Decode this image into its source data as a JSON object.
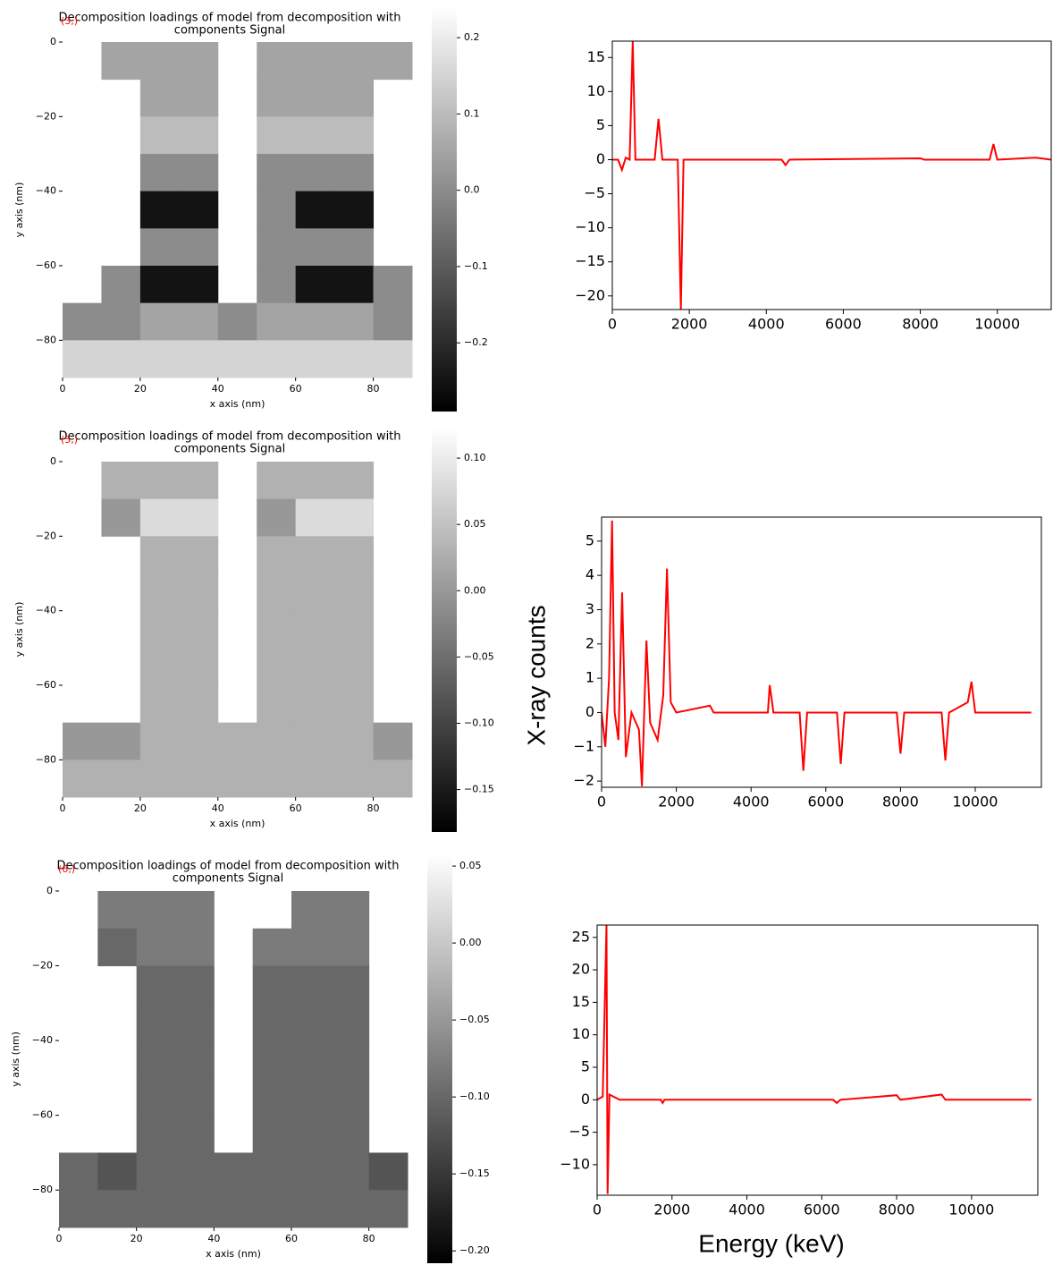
{
  "figure": {
    "ylabel": "X-ray counts",
    "xlabel": "Energy (keV)"
  },
  "chart_data": [
    {
      "type": "heatmap",
      "title": [
        "Decomposition loadings of  model from decomposition with",
        "components Signal"
      ],
      "annotation": "(3,)",
      "xlabel": "x axis (nm)",
      "ylabel": "y axis (nm)",
      "cmap": "gray",
      "xlim": [
        0,
        90
      ],
      "ylim": [
        -90,
        0
      ],
      "xticks": [
        0,
        20,
        40,
        60,
        80
      ],
      "yticks": [
        0,
        {
          "value": -20,
          "label": "−20"
        },
        {
          "value": -40,
          "label": "−40"
        },
        {
          "value": -60,
          "label": "−60"
        },
        {
          "value": -80,
          "label": "−80"
        }
      ],
      "clim": [
        -0.29,
        0.24
      ],
      "cticks": [
        0.2,
        0.1,
        {
          "value": 0,
          "label": "0.0"
        },
        {
          "value": -0.1,
          "label": "−0.1"
        },
        {
          "value": -0.2,
          "label": "−0.2"
        }
      ],
      "x": [
        5,
        15,
        25,
        35,
        45,
        55,
        65,
        75,
        85
      ],
      "y": [
        -5,
        -15,
        -25,
        -35,
        -45,
        -55,
        -65,
        -75,
        -85
      ],
      "values": [
        [
          null,
          0.05,
          0.05,
          0.05,
          null,
          0.05,
          0.05,
          0.05,
          0.05
        ],
        [
          null,
          null,
          0.05,
          0.05,
          null,
          0.05,
          0.05,
          0.05,
          null
        ],
        [
          null,
          null,
          0.1,
          0.1,
          null,
          0.1,
          0.1,
          0.1,
          null
        ],
        [
          null,
          null,
          0.0,
          0.0,
          null,
          0.0,
          0.0,
          0.0,
          null
        ],
        [
          null,
          null,
          -0.25,
          -0.25,
          null,
          0.0,
          -0.25,
          -0.25,
          null
        ],
        [
          null,
          null,
          0.0,
          0.0,
          null,
          0.0,
          0.0,
          0.0,
          null
        ],
        [
          null,
          0.0,
          -0.25,
          -0.25,
          null,
          0.0,
          -0.25,
          -0.25,
          0.0
        ],
        [
          0.0,
          0.0,
          0.05,
          0.05,
          0.0,
          0.05,
          0.05,
          0.05,
          0.0
        ],
        [
          0.15,
          0.15,
          0.15,
          0.15,
          0.15,
          0.15,
          0.15,
          0.15,
          0.15
        ]
      ]
    },
    {
      "type": "line",
      "color": "#ff0000",
      "xlim": [
        0,
        11400
      ],
      "ylim": [
        -22,
        17.4
      ],
      "xticks": [
        0,
        2000,
        4000,
        6000,
        8000,
        10000
      ],
      "yticks": [
        {
          "value": -20,
          "label": "−20"
        },
        {
          "value": -15,
          "label": "−15"
        },
        {
          "value": -10,
          "label": "−10"
        },
        {
          "value": -5,
          "label": "−5"
        },
        0,
        5,
        10,
        15
      ],
      "x": [
        0,
        150,
        250,
        350,
        450,
        530,
        600,
        1100,
        1200,
        1300,
        1700,
        1780,
        1850,
        4400,
        4500,
        4600,
        8000,
        8100,
        9800,
        9900,
        10000,
        11000,
        11400
      ],
      "values": [
        0,
        0,
        -1.5,
        0.3,
        0,
        17.4,
        0,
        0,
        6,
        0,
        0,
        -22,
        0,
        0,
        -0.8,
        0,
        0.2,
        0,
        0,
        2.3,
        0,
        0.3,
        0
      ]
    },
    {
      "type": "heatmap",
      "title": [
        "Decomposition loadings of  model from decomposition with",
        "components Signal"
      ],
      "annotation": "(5,)",
      "xlabel": "x axis (nm)",
      "ylabel": "y axis (nm)",
      "cmap": "gray",
      "xlim": [
        0,
        90
      ],
      "ylim": [
        -90,
        0
      ],
      "xticks": [
        0,
        20,
        40,
        60,
        80
      ],
      "yticks": [
        0,
        {
          "value": -20,
          "label": "−20"
        },
        {
          "value": -40,
          "label": "−40"
        },
        {
          "value": -60,
          "label": "−60"
        },
        {
          "value": -80,
          "label": "−80"
        }
      ],
      "clim": [
        -0.182,
        0.123
      ],
      "cticks": [
        {
          "value": 0.1,
          "label": "0.10"
        },
        0.05,
        {
          "value": 0,
          "label": "0.00"
        },
        {
          "value": -0.05,
          "label": "−0.05"
        },
        {
          "value": -0.1,
          "label": "−0.10"
        },
        {
          "value": -0.15,
          "label": "−0.15"
        }
      ],
      "x": [
        5,
        15,
        25,
        35,
        45,
        55,
        65,
        75,
        85
      ],
      "y": [
        -5,
        -15,
        -25,
        -35,
        -45,
        -55,
        -65,
        -75,
        -85
      ],
      "values": [
        [
          null,
          0.03,
          0.03,
          0.03,
          null,
          0.03,
          0.03,
          0.03,
          null
        ],
        [
          null,
          0.0,
          0.08,
          0.08,
          null,
          0.0,
          0.08,
          0.08,
          null
        ],
        [
          null,
          null,
          0.03,
          0.03,
          null,
          0.03,
          0.03,
          0.03,
          null
        ],
        [
          null,
          null,
          0.03,
          0.03,
          null,
          0.03,
          0.03,
          0.03,
          null
        ],
        [
          null,
          null,
          0.03,
          0.03,
          null,
          0.03,
          0.03,
          0.03,
          null
        ],
        [
          null,
          null,
          0.03,
          0.03,
          null,
          0.03,
          0.03,
          0.03,
          null
        ],
        [
          null,
          null,
          0.03,
          0.03,
          null,
          0.03,
          0.03,
          0.03,
          null
        ],
        [
          0.0,
          0.0,
          0.03,
          0.03,
          0.03,
          0.03,
          0.03,
          0.03,
          0.0
        ],
        [
          0.03,
          0.03,
          0.03,
          0.03,
          0.03,
          0.03,
          0.03,
          0.03,
          0.03
        ]
      ]
    },
    {
      "type": "line",
      "color": "#ff0000",
      "xlim": [
        0,
        11770
      ],
      "ylim": [
        -2.18,
        5.7
      ],
      "xticks": [
        0,
        2000,
        4000,
        6000,
        8000,
        10000
      ],
      "yticks": [
        {
          "value": -2,
          "label": "−2"
        },
        {
          "value": -1,
          "label": "−1"
        },
        0,
        1,
        2,
        3,
        4,
        5
      ],
      "x": [
        0,
        100,
        200,
        280,
        350,
        450,
        550,
        650,
        800,
        1000,
        1080,
        1200,
        1300,
        1500,
        1650,
        1750,
        1850,
        2000,
        2900,
        3000,
        4450,
        4500,
        4600,
        5300,
        5400,
        5500,
        6300,
        6400,
        6500,
        7900,
        8000,
        8100,
        9100,
        9200,
        9300,
        9800,
        9900,
        10000,
        11500
      ],
      "values": [
        0,
        -1,
        1,
        5.6,
        0,
        -0.8,
        3.5,
        -1.3,
        0,
        -0.5,
        -2.15,
        2.1,
        -0.3,
        -0.8,
        0.5,
        4.2,
        0.3,
        0,
        0.2,
        0,
        0,
        0.8,
        0,
        0,
        -1.7,
        0,
        0,
        -1.5,
        0,
        0,
        -1.2,
        0,
        0,
        -1.4,
        0,
        0.3,
        0.9,
        0,
        0
      ]
    },
    {
      "type": "heatmap",
      "title": [
        "Decomposition loadings of  model from decomposition with",
        "components Signal"
      ],
      "annotation": "(6,)",
      "xlabel": "x axis (nm)",
      "ylabel": "y axis (nm)",
      "cmap": "gray",
      "xlim": [
        0,
        90
      ],
      "ylim": [
        -90,
        0
      ],
      "xticks": [
        0,
        20,
        40,
        60,
        80
      ],
      "yticks": [
        0,
        {
          "value": -20,
          "label": "−20"
        },
        {
          "value": -40,
          "label": "−40"
        },
        {
          "value": -60,
          "label": "−60"
        },
        {
          "value": -80,
          "label": "−80"
        }
      ],
      "clim": [
        -0.208,
        0.0576
      ],
      "cticks": [
        0.05,
        {
          "value": 0,
          "label": "0.00"
        },
        {
          "value": -0.05,
          "label": "−0.05"
        },
        {
          "value": -0.1,
          "label": "−0.10"
        },
        {
          "value": -0.15,
          "label": "−0.15"
        },
        {
          "value": -0.2,
          "label": "−0.20"
        }
      ],
      "x": [
        5,
        15,
        25,
        35,
        45,
        55,
        65,
        75,
        85
      ],
      "y": [
        -5,
        -15,
        -25,
        -35,
        -45,
        -55,
        -65,
        -75,
        -85
      ],
      "values": [
        [
          null,
          -0.08,
          -0.08,
          -0.08,
          null,
          null,
          -0.08,
          -0.08,
          null
        ],
        [
          null,
          -0.1,
          -0.08,
          -0.08,
          null,
          -0.08,
          -0.08,
          -0.08,
          null
        ],
        [
          null,
          null,
          -0.1,
          -0.1,
          null,
          -0.1,
          -0.1,
          -0.1,
          null
        ],
        [
          null,
          null,
          -0.1,
          -0.1,
          null,
          -0.1,
          -0.1,
          -0.1,
          null
        ],
        [
          null,
          null,
          -0.1,
          -0.1,
          null,
          -0.1,
          -0.1,
          -0.1,
          null
        ],
        [
          null,
          null,
          -0.1,
          -0.1,
          null,
          -0.1,
          -0.1,
          -0.1,
          null
        ],
        [
          null,
          null,
          -0.1,
          -0.1,
          null,
          -0.1,
          -0.1,
          -0.1,
          null
        ],
        [
          -0.1,
          -0.12,
          -0.1,
          -0.1,
          -0.1,
          -0.1,
          -0.1,
          -0.1,
          -0.12
        ],
        [
          -0.1,
          -0.1,
          -0.1,
          -0.1,
          -0.1,
          -0.1,
          -0.1,
          -0.1,
          -0.1
        ]
      ]
    },
    {
      "type": "line",
      "color": "#ff0000",
      "xlim": [
        0,
        11770
      ],
      "ylim": [
        -14.7,
        26.9
      ],
      "xticks": [
        0,
        2000,
        4000,
        6000,
        8000,
        10000
      ],
      "yticks": [
        {
          "value": -10,
          "label": "−10"
        },
        {
          "value": -5,
          "label": "−5"
        },
        0,
        5,
        10,
        15,
        20,
        25
      ],
      "x": [
        0,
        150,
        250,
        280,
        330,
        600,
        1700,
        1750,
        1800,
        6300,
        6400,
        6500,
        8000,
        8100,
        9200,
        9300,
        11600
      ],
      "values": [
        0,
        0.5,
        26.9,
        -14.5,
        0.8,
        0,
        0,
        -0.5,
        0,
        0,
        -0.5,
        0,
        0.7,
        0,
        0.8,
        0,
        0
      ]
    }
  ]
}
